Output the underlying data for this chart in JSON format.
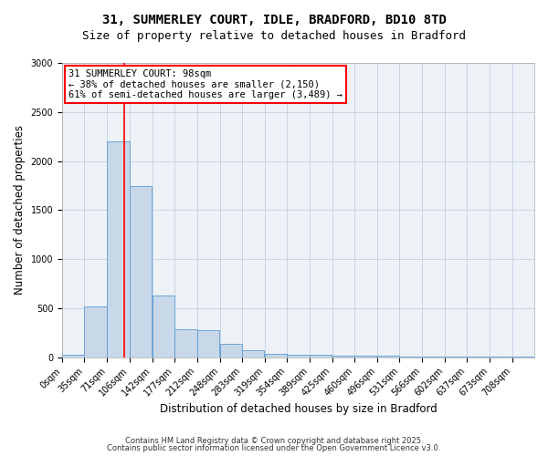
{
  "title_line1": "31, SUMMERLEY COURT, IDLE, BRADFORD, BD10 8TD",
  "title_line2": "Size of property relative to detached houses in Bradford",
  "xlabel": "Distribution of detached houses by size in Bradford",
  "ylabel": "Number of detached properties",
  "bar_color": "#c8d8e8",
  "bar_edge_color": "#5b9bd5",
  "bg_color": "#eef2f7",
  "grid_color": "#c5d5e5",
  "annotation_text": "31 SUMMERLEY COURT: 98sqm\n← 38% of detached houses are smaller (2,150)\n61% of semi-detached houses are larger (3,489) →",
  "vline_x": 98,
  "vline_color": "red",
  "categories": [
    "0sqm",
    "35sqm",
    "71sqm",
    "106sqm",
    "142sqm",
    "177sqm",
    "212sqm",
    "248sqm",
    "283sqm",
    "319sqm",
    "354sqm",
    "389sqm",
    "425sqm",
    "460sqm",
    "496sqm",
    "531sqm",
    "566sqm",
    "602sqm",
    "637sqm",
    "673sqm",
    "708sqm"
  ],
  "bin_edges": [
    0,
    35,
    71,
    106,
    142,
    177,
    212,
    248,
    283,
    319,
    354,
    389,
    425,
    460,
    496,
    531,
    566,
    602,
    637,
    673,
    708
  ],
  "values": [
    30,
    520,
    2200,
    1750,
    630,
    290,
    280,
    140,
    75,
    40,
    30,
    25,
    20,
    15,
    20,
    8,
    5,
    5,
    5,
    5,
    5
  ],
  "ylim": [
    0,
    3000
  ],
  "yticks": [
    0,
    500,
    1000,
    1500,
    2000,
    2500,
    3000
  ],
  "footer_line1": "Contains HM Land Registry data © Crown copyright and database right 2025.",
  "footer_line2": "Contains public sector information licensed under the Open Government Licence v3.0.",
  "annotation_box_color": "white",
  "annotation_box_edge": "red",
  "title_fontsize": 10,
  "subtitle_fontsize": 9,
  "axis_label_fontsize": 8.5,
  "tick_fontsize": 7,
  "annotation_fontsize": 7.5,
  "footer_fontsize": 6
}
